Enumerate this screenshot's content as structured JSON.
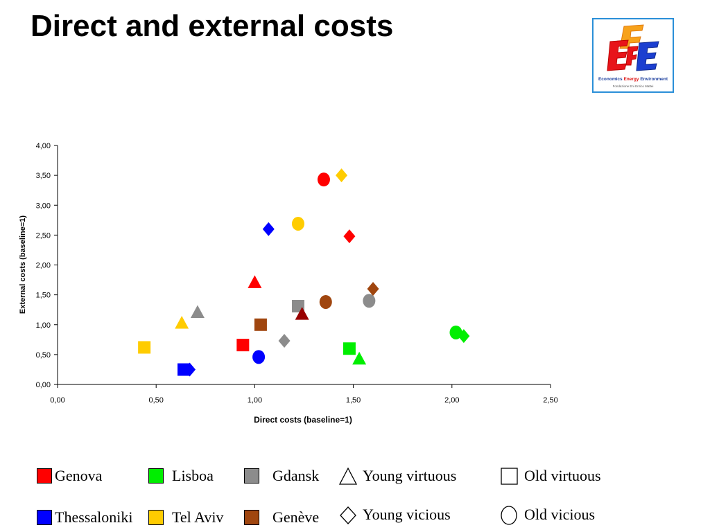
{
  "slide": {
    "title": "Direct and external costs"
  },
  "logo": {
    "tagline_economics": "Economics",
    "tagline_energy": "Energy",
    "tagline_environment": "Environment",
    "subtagline": "Fondazione Eni Enrico Mattei"
  },
  "colors": {
    "genova": "#ff0000",
    "lisboa": "#00ee00",
    "gdansk": "#8c8c8c",
    "thessaloniki": "#0000ff",
    "telaviv": "#ffcc00",
    "geneve": "#a0460f",
    "darkred": "#990000"
  },
  "chart_data": {
    "type": "scatter",
    "xlabel": "Direct costs (baseline=1)",
    "ylabel": "External costs (baseline=1)",
    "xlim": [
      0,
      2.5
    ],
    "ylim": [
      0,
      4
    ],
    "xticks": [
      "0,00",
      "0,50",
      "1,00",
      "1,50",
      "2,00",
      "2,50"
    ],
    "yticks": [
      "0,00",
      "0,50",
      "1,00",
      "1,50",
      "2,00",
      "2,50",
      "3,00",
      "3,50",
      "4,00"
    ],
    "grid": false,
    "points": [
      {
        "city": "genova",
        "type": "young_virtuous",
        "x": 1.0,
        "y": 1.7
      },
      {
        "city": "genova",
        "type": "young_vicious",
        "x": 1.48,
        "y": 2.48
      },
      {
        "city": "genova",
        "type": "old_virtuous",
        "x": 0.94,
        "y": 0.66
      },
      {
        "city": "genova",
        "type": "old_vicious",
        "x": 1.35,
        "y": 3.43
      },
      {
        "city": "lisboa",
        "type": "young_virtuous",
        "x": 1.53,
        "y": 0.42
      },
      {
        "city": "lisboa",
        "type": "young_vicious",
        "x": 2.06,
        "y": 0.81
      },
      {
        "city": "lisboa",
        "type": "old_virtuous",
        "x": 1.48,
        "y": 0.6
      },
      {
        "city": "lisboa",
        "type": "old_vicious",
        "x": 2.02,
        "y": 0.87
      },
      {
        "city": "gdansk",
        "type": "young_virtuous",
        "x": 0.71,
        "y": 1.2
      },
      {
        "city": "gdansk",
        "type": "young_vicious",
        "x": 1.15,
        "y": 0.73
      },
      {
        "city": "gdansk",
        "type": "old_virtuous",
        "x": 1.22,
        "y": 1.31
      },
      {
        "city": "gdansk",
        "type": "old_vicious",
        "x": 1.58,
        "y": 1.4
      },
      {
        "city": "thessaloniki",
        "type": "young_vicious",
        "x": 1.07,
        "y": 2.6
      },
      {
        "city": "thessaloniki",
        "type": "young_vicious",
        "x": 0.67,
        "y": 0.25
      },
      {
        "city": "thessaloniki",
        "type": "old_virtuous",
        "x": 0.64,
        "y": 0.25
      },
      {
        "city": "thessaloniki",
        "type": "old_vicious",
        "x": 1.02,
        "y": 0.46
      },
      {
        "city": "telaviv",
        "type": "young_virtuous",
        "x": 0.63,
        "y": 1.02
      },
      {
        "city": "telaviv",
        "type": "young_vicious",
        "x": 1.44,
        "y": 3.5
      },
      {
        "city": "telaviv",
        "type": "old_virtuous",
        "x": 0.44,
        "y": 0.62
      },
      {
        "city": "telaviv",
        "type": "old_vicious",
        "x": 1.22,
        "y": 2.69
      },
      {
        "city": "geneve",
        "type": "young_vicious",
        "x": 1.6,
        "y": 1.6
      },
      {
        "city": "geneve",
        "type": "old_virtuous",
        "x": 1.03,
        "y": 1.0
      },
      {
        "city": "geneve",
        "type": "old_vicious",
        "x": 1.36,
        "y": 1.38
      },
      {
        "city": "darkred",
        "type": "young_virtuous",
        "x": 1.24,
        "y": 1.17
      }
    ]
  },
  "legend": {
    "cities": [
      {
        "key": "genova",
        "label": "Genova"
      },
      {
        "key": "lisboa",
        "label": "Lisboa"
      },
      {
        "key": "gdansk",
        "label": "Gdansk"
      },
      {
        "key": "thessaloniki",
        "label": "Thessaloniki"
      },
      {
        "key": "telaviv",
        "label": "Tel Aviv"
      },
      {
        "key": "geneve",
        "label": "Genève"
      }
    ],
    "types": [
      {
        "key": "young_virtuous",
        "shape": "triangle",
        "label": "Young virtuous"
      },
      {
        "key": "old_virtuous",
        "shape": "square",
        "label": "Old virtuous"
      },
      {
        "key": "young_vicious",
        "shape": "diamond",
        "label": "Young vicious"
      },
      {
        "key": "old_vicious",
        "shape": "circle",
        "label": "Old vicious"
      }
    ]
  }
}
